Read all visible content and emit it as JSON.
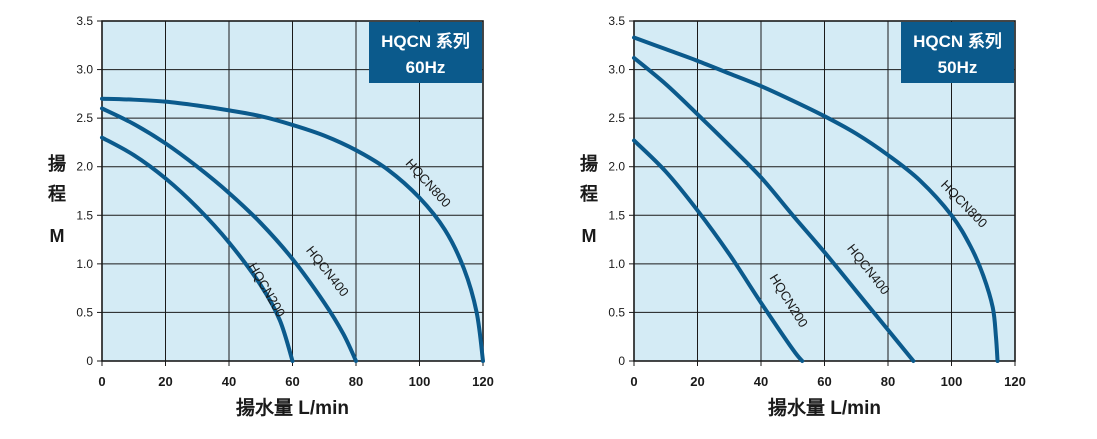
{
  "colors": {
    "plot_bg": "#d4ebf5",
    "grid": "#1a1a1a",
    "curve": "#0b5a8c",
    "badge_bg": "#0b5a8c",
    "badge_text": "#ffffff",
    "axis_text": "#1a1a1a"
  },
  "chart_data": [
    {
      "type": "line",
      "title": "HQCN 系列",
      "subtitle": "60Hz",
      "xlabel": "揚水量 L/min",
      "ylabel": [
        "揚",
        "程",
        "M"
      ],
      "xlim": [
        0,
        120
      ],
      "ylim": [
        0,
        3.5
      ],
      "xticks": [
        "0",
        "20",
        "40",
        "60",
        "80",
        "100",
        "120"
      ],
      "yticks": [
        "0",
        "0.5",
        "1.0",
        "1.5",
        "2.0",
        "2.5",
        "3.0",
        "3.5"
      ],
      "grid": true,
      "series": [
        {
          "name": "HQCN200",
          "x": [
            0,
            10,
            20,
            30,
            40,
            50,
            56,
            60
          ],
          "y": [
            2.3,
            2.12,
            1.88,
            1.58,
            1.22,
            0.78,
            0.42,
            0.0
          ]
        },
        {
          "name": "HQCN400",
          "x": [
            0,
            10,
            20,
            30,
            40,
            50,
            60,
            70,
            76,
            80
          ],
          "y": [
            2.6,
            2.44,
            2.24,
            2.0,
            1.73,
            1.42,
            1.05,
            0.6,
            0.28,
            0.0
          ]
        },
        {
          "name": "HQCN800",
          "x": [
            0,
            10,
            20,
            30,
            40,
            50,
            60,
            70,
            80,
            90,
            100,
            108,
            114,
            118,
            120
          ],
          "y": [
            2.7,
            2.69,
            2.67,
            2.63,
            2.58,
            2.52,
            2.43,
            2.32,
            2.17,
            1.97,
            1.68,
            1.35,
            0.95,
            0.5,
            0.0
          ]
        }
      ]
    },
    {
      "type": "line",
      "title": "HQCN 系列",
      "subtitle": "50Hz",
      "xlabel": "揚水量 L/min",
      "ylabel": [
        "揚",
        "程",
        "M"
      ],
      "xlim": [
        0,
        120
      ],
      "ylim": [
        0,
        3.5
      ],
      "xticks": [
        "0",
        "20",
        "40",
        "60",
        "80",
        "100",
        "120"
      ],
      "yticks": [
        "0",
        "0.5",
        "1.0",
        "1.5",
        "2.0",
        "2.5",
        "3.0",
        "3.5"
      ],
      "grid": true,
      "series": [
        {
          "name": "HQCN200",
          "x": [
            0,
            10,
            20,
            30,
            40,
            50,
            53
          ],
          "y": [
            2.27,
            1.95,
            1.55,
            1.1,
            0.6,
            0.12,
            0.0
          ]
        },
        {
          "name": "HQCN400",
          "x": [
            0,
            10,
            20,
            30,
            40,
            50,
            60,
            70,
            80,
            88
          ],
          "y": [
            3.12,
            2.85,
            2.54,
            2.22,
            1.89,
            1.5,
            1.12,
            0.72,
            0.32,
            0.0
          ]
        },
        {
          "name": "HQCN800",
          "x": [
            0,
            10,
            20,
            30,
            40,
            50,
            60,
            70,
            80,
            90,
            100,
            106,
            110,
            113,
            114,
            114.5
          ],
          "y": [
            3.33,
            3.21,
            3.09,
            2.96,
            2.83,
            2.68,
            2.52,
            2.34,
            2.12,
            1.86,
            1.5,
            1.18,
            0.88,
            0.55,
            0.25,
            0.0
          ]
        }
      ]
    }
  ]
}
